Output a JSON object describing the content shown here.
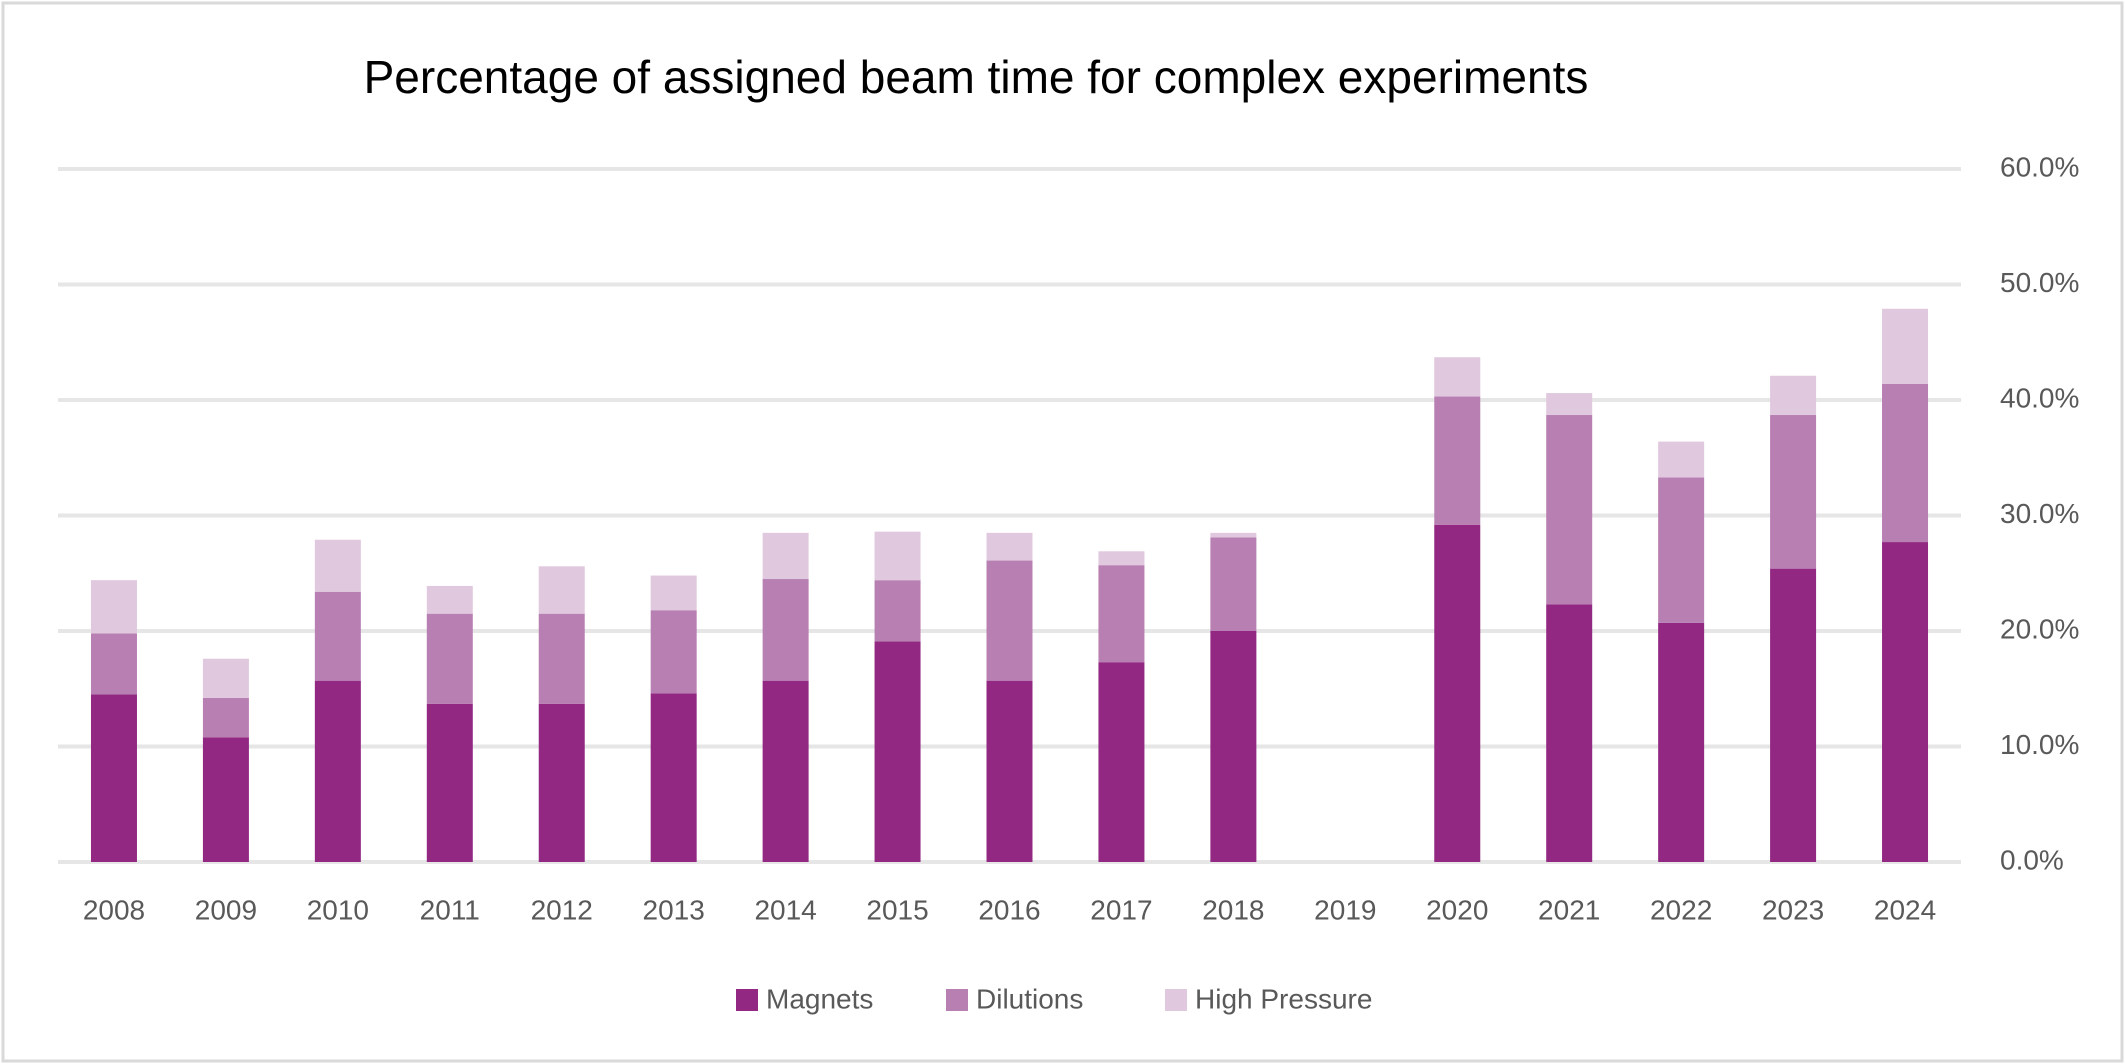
{
  "chart_data": {
    "type": "bar",
    "stacked": true,
    "title": "Percentage of assigned beam time for complex experiments",
    "categories": [
      "2008",
      "2009",
      "2010",
      "2011",
      "2012",
      "2013",
      "2014",
      "2015",
      "2016",
      "2017",
      "2018",
      "2019",
      "2020",
      "2021",
      "2022",
      "2023",
      "2024"
    ],
    "series": [
      {
        "name": "Magnets",
        "color": "#922882",
        "values": [
          14.5,
          10.8,
          15.7,
          13.7,
          13.7,
          14.6,
          15.7,
          19.1,
          15.7,
          17.3,
          20.0,
          null,
          29.2,
          22.3,
          20.7,
          25.4,
          27.7
        ]
      },
      {
        "name": "Dilutions",
        "color": "#b87fb3",
        "values": [
          5.3,
          3.4,
          7.7,
          7.8,
          7.8,
          7.2,
          8.8,
          5.3,
          10.4,
          8.4,
          8.1,
          null,
          11.1,
          16.4,
          12.6,
          13.3,
          13.7
        ]
      },
      {
        "name": "High Pressure",
        "color": "#e0c8de",
        "values": [
          4.6,
          3.4,
          4.5,
          2.4,
          4.1,
          3.0,
          4.0,
          4.2,
          2.4,
          1.2,
          0.4,
          null,
          3.4,
          1.9,
          3.1,
          3.4,
          6.5
        ]
      }
    ],
    "ylim": [
      0,
      60
    ],
    "yticks": [
      {
        "value": 0,
        "label": "0.0%"
      },
      {
        "value": 10,
        "label": "10.0%"
      },
      {
        "value": 20,
        "label": "20.0%"
      },
      {
        "value": 30,
        "label": "30.0%"
      },
      {
        "value": 40,
        "label": "40.0%"
      },
      {
        "value": 50,
        "label": "50.0%"
      },
      {
        "value": 60,
        "label": "60.0%"
      }
    ],
    "grid": true,
    "legend": "bottom"
  }
}
